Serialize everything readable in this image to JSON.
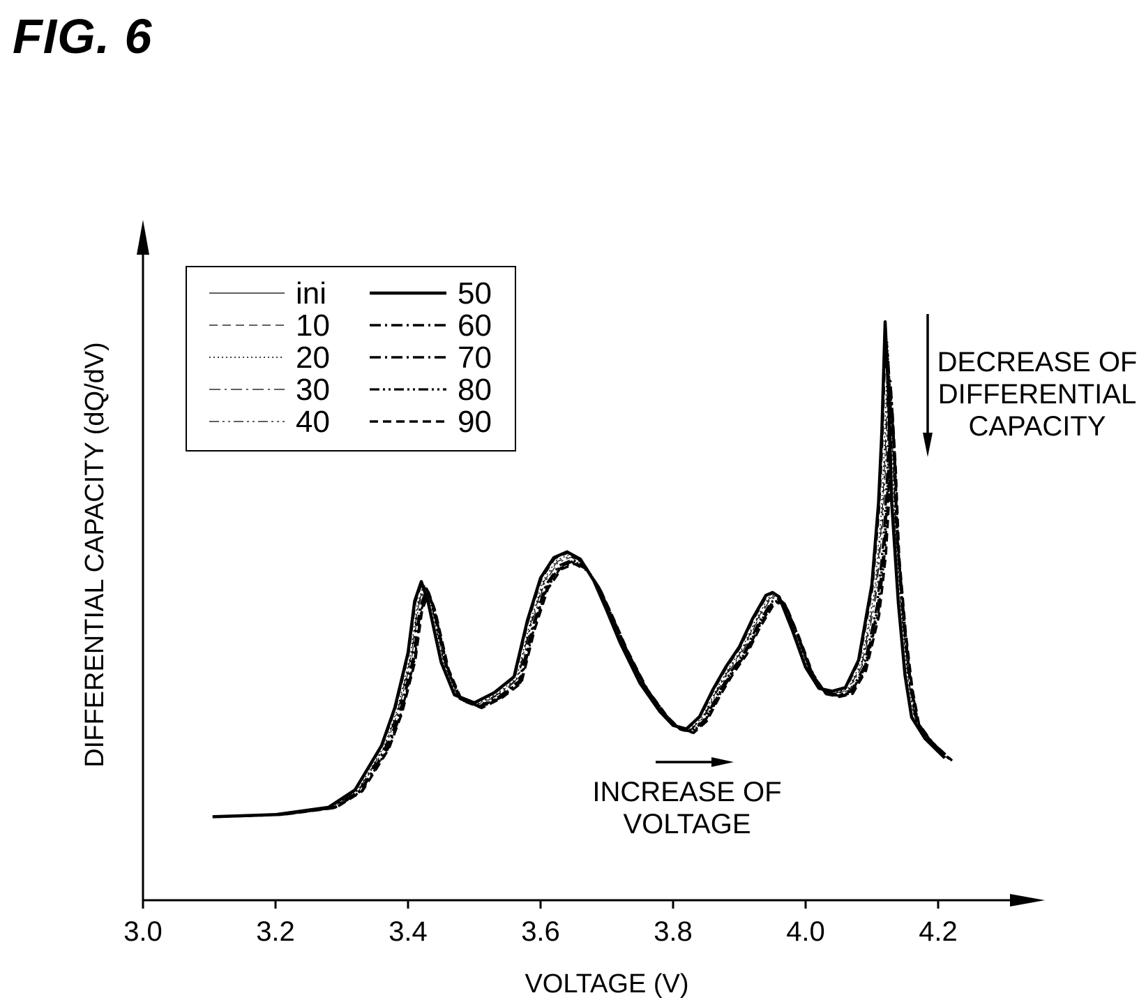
{
  "figure_label": "FIG. 6",
  "chart_data": {
    "type": "line",
    "title": "",
    "xlabel": "VOLTAGE (V)",
    "ylabel": "DIFFERENTIAL CAPACITY (dQ/dV)",
    "xlim": [
      3.0,
      4.35
    ],
    "ylim": [
      0,
      100
    ],
    "xticks": [
      3.0,
      3.2,
      3.4,
      3.6,
      3.8,
      4.0,
      4.2
    ],
    "xtick_labels": [
      "3.0",
      "3.2",
      "3.4",
      "3.6",
      "3.8",
      "4.0",
      "4.2"
    ],
    "y_tick_labels_shown": false,
    "grid": false,
    "legend_position": "top-left",
    "legend_columns": [
      [
        "ini",
        "10",
        "20",
        "30",
        "40"
      ],
      [
        "50",
        "60",
        "70",
        "80",
        "90"
      ]
    ],
    "series": [
      {
        "name": "ini",
        "dash": "solid",
        "width": 1.2,
        "shift": 0.0,
        "scale": 1.0
      },
      {
        "name": "10",
        "dash": "dashed",
        "width": 1.2,
        "shift": 0.002,
        "scale": 0.98
      },
      {
        "name": "20",
        "dash": "dotted",
        "width": 1.4,
        "shift": 0.004,
        "scale": 0.96
      },
      {
        "name": "30",
        "dash": "dashdot",
        "width": 1.2,
        "shift": 0.005,
        "scale": 0.94
      },
      {
        "name": "40",
        "dash": "dashdotdot",
        "width": 1.2,
        "shift": 0.006,
        "scale": 0.92
      },
      {
        "name": "50",
        "dash": "solid",
        "width": 4.5,
        "shift": 0.0,
        "scale": 1.0
      },
      {
        "name": "60",
        "dash": "dashdot",
        "width": 3.5,
        "shift": 0.008,
        "scale": 0.88
      },
      {
        "name": "70",
        "dash": "dashdot",
        "width": 3.5,
        "shift": 0.009,
        "scale": 0.86
      },
      {
        "name": "80",
        "dash": "dashdotdot",
        "width": 3.2,
        "shift": 0.01,
        "scale": 0.84
      },
      {
        "name": "90",
        "dash": "dashed",
        "width": 3.5,
        "shift": 0.011,
        "scale": 0.82
      }
    ],
    "base_curve": {
      "x": [
        3.105,
        3.2,
        3.28,
        3.32,
        3.36,
        3.38,
        3.4,
        3.41,
        3.42,
        3.43,
        3.45,
        3.47,
        3.5,
        3.53,
        3.56,
        3.58,
        3.6,
        3.62,
        3.64,
        3.66,
        3.68,
        3.7,
        3.72,
        3.75,
        3.78,
        3.8,
        3.82,
        3.84,
        3.86,
        3.88,
        3.9,
        3.92,
        3.94,
        3.95,
        3.96,
        3.98,
        4.0,
        4.02,
        4.04,
        4.06,
        4.08,
        4.1,
        4.11,
        4.115,
        4.12,
        4.125,
        4.13,
        4.14,
        4.15,
        4.16,
        4.18,
        4.21
      ],
      "y": [
        11.5,
        11.8,
        12.8,
        15.2,
        21.3,
        26.5,
        34.1,
        41.2,
        43.9,
        41.2,
        32.8,
        28.3,
        27.2,
        28.6,
        30.8,
        38.5,
        44.4,
        47.2,
        48.0,
        47.0,
        44.1,
        39.9,
        35.5,
        29.9,
        26.0,
        24.1,
        23.6,
        25.3,
        29.0,
        32.2,
        34.9,
        38.8,
        42.0,
        42.4,
        41.8,
        37.2,
        32.1,
        29.2,
        28.8,
        29.3,
        33.1,
        43.5,
        54.7,
        64.6,
        79.7,
        69.7,
        54.7,
        40.9,
        31.0,
        25.2,
        22.3,
        19.6
      ]
    },
    "annotations": [
      {
        "text_lines": [
          "DECREASE OF",
          "DIFFERENTIAL",
          "CAPACITY"
        ],
        "arrow": "down"
      },
      {
        "text_lines": [
          "INCREASE OF",
          "VOLTAGE"
        ],
        "arrow": "right"
      }
    ]
  }
}
